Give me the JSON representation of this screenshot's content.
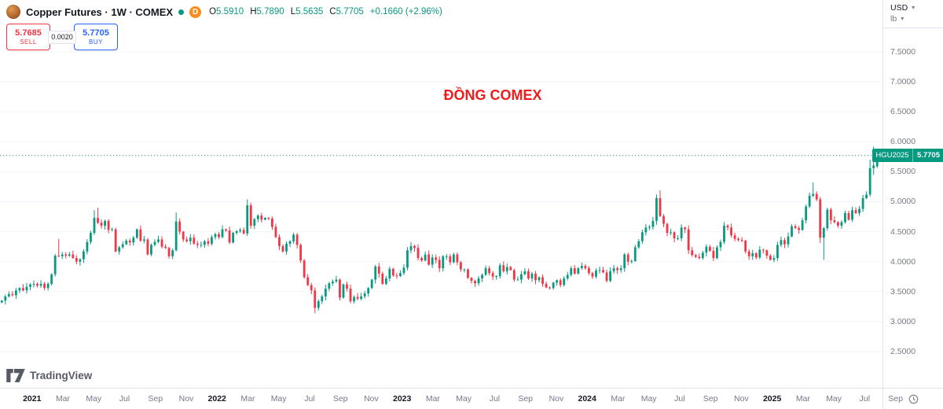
{
  "header": {
    "symbol_title": "Copper Futures · 1W · COMEX",
    "interval_badge": "D",
    "ohlc": {
      "open_label": "O",
      "open": "5.5910",
      "high_label": "H",
      "high": "5.7890",
      "low_label": "L",
      "low": "5.5635",
      "close_label": "C",
      "close": "5.7705",
      "change": "+0.1660 (+2.96%)"
    },
    "unit_currency": "USD",
    "unit_measure": "lb"
  },
  "order_panel": {
    "sell_price": "5.7685",
    "sell_label": "SELL",
    "spread": "0.0020",
    "buy_price": "5.7705",
    "buy_label": "BUY"
  },
  "annotation": {
    "text": "ĐỒNG COMEX",
    "color": "#ee1d1d"
  },
  "price_label": {
    "contract": "HGU2025",
    "price": "5.7705"
  },
  "watermark": {
    "text": "TradingView"
  },
  "colors": {
    "up": "#089981",
    "down": "#f23645",
    "grid": "#f0f3fa",
    "axis_text": "#787b86",
    "buy": "#2962ff",
    "sell": "#f23645",
    "price_line": "#089981",
    "tag_bg": "#089981"
  },
  "chart_data": {
    "type": "candlestick",
    "title": "Copper Futures Weekly (COMEX)",
    "interval": "1W",
    "unit": "USD/lb",
    "current_price": 5.7705,
    "current_contract": "HGU2025",
    "ylim": [
      1.896,
      8.366
    ],
    "y_ticks": [
      {
        "v": 7.5,
        "label": "7.5000"
      },
      {
        "v": 7.0,
        "label": "7.0000"
      },
      {
        "v": 6.5,
        "label": "6.5000"
      },
      {
        "v": 6.0,
        "label": "6.0000"
      },
      {
        "v": 5.5,
        "label": "5.5000"
      },
      {
        "v": 5.0,
        "label": "5.0000"
      },
      {
        "v": 4.5,
        "label": "4.5000"
      },
      {
        "v": 4.0,
        "label": "4.0000"
      },
      {
        "v": 3.5,
        "label": "3.5000"
      },
      {
        "v": 3.0,
        "label": "3.0000"
      },
      {
        "v": 2.5,
        "label": "2.5000"
      }
    ],
    "weeks_total": 248,
    "pre_weeks": 9,
    "x_labels": [
      {
        "label": "2021",
        "months": 0,
        "year": true
      },
      {
        "label": "Mar",
        "months": 2
      },
      {
        "label": "May",
        "months": 4
      },
      {
        "label": "Jul",
        "months": 6
      },
      {
        "label": "Sep",
        "months": 8
      },
      {
        "label": "Nov",
        "months": 10
      },
      {
        "label": "2022",
        "months": 12,
        "year": true
      },
      {
        "label": "Mar",
        "months": 14
      },
      {
        "label": "May",
        "months": 16
      },
      {
        "label": "Jul",
        "months": 18
      },
      {
        "label": "Sep",
        "months": 20
      },
      {
        "label": "Nov",
        "months": 22
      },
      {
        "label": "2023",
        "months": 24,
        "year": true
      },
      {
        "label": "Mar",
        "months": 26
      },
      {
        "label": "May",
        "months": 28
      },
      {
        "label": "Jul",
        "months": 30
      },
      {
        "label": "Sep",
        "months": 32
      },
      {
        "label": "Nov",
        "months": 34
      },
      {
        "label": "2024",
        "months": 36,
        "year": true
      },
      {
        "label": "Mar",
        "months": 38
      },
      {
        "label": "May",
        "months": 40
      },
      {
        "label": "Jul",
        "months": 42
      },
      {
        "label": "Sep",
        "months": 44
      },
      {
        "label": "Nov",
        "months": 46
      },
      {
        "label": "2025",
        "months": 48,
        "year": true
      },
      {
        "label": "Mar",
        "months": 50
      },
      {
        "label": "May",
        "months": 52
      },
      {
        "label": "Jul",
        "months": 54
      },
      {
        "label": "Sep",
        "months": 56
      }
    ],
    "closes": [
      3.35,
      3.42,
      3.46,
      3.44,
      3.52,
      3.56,
      3.52,
      3.58,
      3.62,
      3.63,
      3.6,
      3.63,
      3.56,
      3.63,
      3.79,
      4.1,
      4.09,
      4.12,
      4.1,
      4.12,
      4.06,
      4.0,
      4.04,
      4.17,
      4.33,
      4.48,
      4.73,
      4.65,
      4.6,
      4.68,
      4.53,
      4.54,
      4.17,
      4.24,
      4.29,
      4.35,
      4.32,
      4.4,
      4.54,
      4.35,
      4.37,
      4.12,
      4.28,
      4.33,
      4.37,
      4.25,
      4.23,
      4.09,
      4.19,
      4.67,
      4.5,
      4.37,
      4.34,
      4.4,
      4.3,
      4.28,
      4.28,
      4.34,
      4.3,
      4.41,
      4.46,
      4.41,
      4.54,
      4.52,
      4.32,
      4.48,
      4.51,
      4.53,
      4.47,
      4.94,
      4.6,
      4.71,
      4.77,
      4.7,
      4.73,
      4.72,
      4.58,
      4.41,
      4.26,
      4.17,
      4.3,
      4.34,
      4.45,
      4.28,
      4.02,
      3.74,
      3.61,
      3.52,
      3.23,
      3.34,
      3.42,
      3.55,
      3.64,
      3.67,
      3.7,
      3.4,
      3.62,
      3.55,
      3.34,
      3.41,
      3.38,
      3.42,
      3.47,
      3.56,
      3.7,
      3.92,
      3.8,
      3.63,
      3.72,
      3.88,
      3.77,
      3.76,
      3.81,
      3.9,
      4.19,
      4.26,
      4.23,
      4.06,
      4.02,
      4.12,
      3.95,
      4.07,
      4.03,
      3.89,
      4.09,
      4.09,
      3.99,
      4.12,
      3.99,
      3.87,
      3.87,
      3.73,
      3.68,
      3.64,
      3.72,
      3.78,
      3.89,
      3.81,
      3.75,
      3.76,
      3.94,
      3.84,
      3.91,
      3.86,
      3.7,
      3.7,
      3.79,
      3.84,
      3.72,
      3.8,
      3.69,
      3.74,
      3.63,
      3.57,
      3.56,
      3.65,
      3.69,
      3.61,
      3.72,
      3.78,
      3.89,
      3.8,
      3.89,
      3.93,
      3.89,
      3.81,
      3.75,
      3.85,
      3.86,
      3.82,
      3.68,
      3.84,
      3.89,
      3.86,
      3.89,
      4.12,
      4.0,
      4.01,
      4.24,
      4.34,
      4.49,
      4.57,
      4.58,
      4.68,
      5.06,
      4.76,
      4.63,
      4.48,
      4.49,
      4.39,
      4.39,
      4.57,
      4.54,
      4.19,
      4.11,
      4.08,
      4.06,
      4.15,
      4.25,
      4.18,
      4.06,
      4.24,
      4.33,
      4.6,
      4.57,
      4.44,
      4.38,
      4.36,
      4.35,
      4.17,
      4.09,
      4.14,
      4.07,
      4.2,
      4.19,
      4.1,
      4.03,
      4.06,
      4.28,
      4.36,
      4.29,
      4.42,
      4.59,
      4.56,
      4.53,
      4.69,
      4.92,
      5.1,
      5.13,
      5.04,
      4.4,
      4.56,
      4.87,
      4.69,
      4.66,
      4.6,
      4.66,
      4.81,
      4.7,
      4.86,
      4.81,
      4.88,
      5.06,
      5.12,
      5.56,
      5.6045,
      5.7705
    ],
    "wick_overrides": {
      "16": {
        "h": 4.38
      },
      "26": {
        "h": 4.86
      },
      "27": {
        "h": 4.9
      },
      "49": {
        "h": 4.82
      },
      "69": {
        "h": 5.04
      },
      "88": {
        "l": 3.14
      },
      "184": {
        "h": 5.12
      },
      "185": {
        "h": 5.19
      },
      "228": {
        "h": 5.32
      },
      "230": {
        "l": 4.31
      },
      "231": {
        "l": 4.03
      },
      "244": {
        "h": 5.7
      },
      "245": {
        "h": 5.92,
        "l": 5.45
      }
    },
    "last_candle": {
      "open": 5.591,
      "high": 5.789,
      "low": 5.5635,
      "close": 5.7705
    }
  }
}
